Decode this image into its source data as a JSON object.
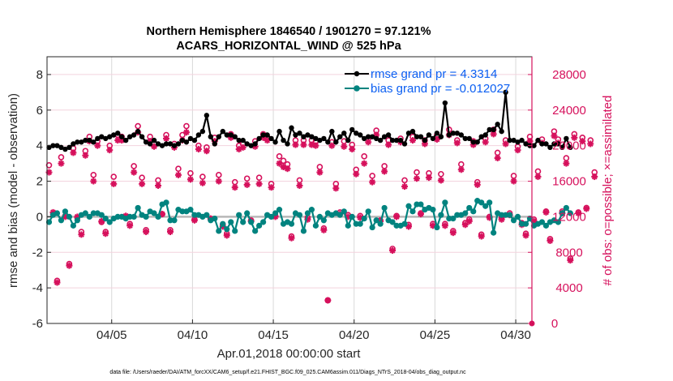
{
  "chart_data": {
    "type": "line",
    "title": "Northern Hemisphere 1846540 / 1901270 = 97.121%",
    "subtitle": "ACARS_HORIZONTAL_WIND @ 525 hPa",
    "xlabel": "Apr.01,2018 00:00:00 start",
    "ylabel": "rmse and bias (model - observation)",
    "y2label": "# of obs: o=possible; ×=assimilated",
    "footer": "data file: /Users/raeder/DAI/ATM_forcXX/CAM6_setup/f.e21.FHIST_BGC.f09_025.CAM6assim.011/Diags_NTrS_2018-04/obs_diag_output.nc",
    "x_unit": "days since Apr.01,2018 00:00:00",
    "xlim": [
      0,
      30
    ],
    "ylim": [
      -6,
      9
    ],
    "y2lim": [
      0,
      30000
    ],
    "grid": true,
    "legend_placement": "top-right",
    "xticks": [
      {
        "value": 4,
        "label": "04/05"
      },
      {
        "value": 9,
        "label": "04/10"
      },
      {
        "value": 14,
        "label": "04/15"
      },
      {
        "value": 19,
        "label": "04/20"
      },
      {
        "value": 24,
        "label": "04/25"
      },
      {
        "value": 29,
        "label": "04/30"
      }
    ],
    "yticks": [
      {
        "value": -6,
        "label": "-6"
      },
      {
        "value": -4,
        "label": "-4"
      },
      {
        "value": -2,
        "label": "-2"
      },
      {
        "value": 0,
        "label": "0"
      },
      {
        "value": 2,
        "label": "2"
      },
      {
        "value": 4,
        "label": "4"
      },
      {
        "value": 6,
        "label": "6"
      },
      {
        "value": 8,
        "label": "8"
      }
    ],
    "y2ticks": [
      {
        "value": 0,
        "label": "0"
      },
      {
        "value": 4000,
        "label": "4000"
      },
      {
        "value": 8000,
        "label": "8000"
      },
      {
        "value": 12000,
        "label": "12000"
      },
      {
        "value": 16000,
        "label": "16000"
      },
      {
        "value": 20000,
        "label": "20000"
      },
      {
        "value": 24000,
        "label": "24000"
      },
      {
        "value": 28000,
        "label": "28000"
      }
    ],
    "zero_line": 0,
    "colors": {
      "rmse": "#000000",
      "bias": "#00837f",
      "obs": "#d6115c",
      "legend_text": "#0b5ff2",
      "zero_line": "#b8b8b8",
      "grid_x": "#d9d9d9",
      "grid_y": "#f3d3de",
      "right_axis": "#d6115c"
    },
    "series": [
      {
        "name": "rmse grand pr = 4.3314",
        "axis": "left",
        "x_start": 0.125,
        "x_step": 0.25,
        "values": [
          3.9,
          4.0,
          4.0,
          3.9,
          3.8,
          3.9,
          4.1,
          4.2,
          4.2,
          4.3,
          4.3,
          4.2,
          4.4,
          4.5,
          4.4,
          4.5,
          4.6,
          4.7,
          4.5,
          4.3,
          4.5,
          4.6,
          4.8,
          4.5,
          4.2,
          4.1,
          4.3,
          4.1,
          4.0,
          4.1,
          4.1,
          4.0,
          4.1,
          4.3,
          4.2,
          4.4,
          4.3,
          4.6,
          4.8,
          5.7,
          4.5,
          4.1,
          4.5,
          4.8,
          4.6,
          4.6,
          4.5,
          4.3,
          4.3,
          4.1,
          4.0,
          4.1,
          4.4,
          4.6,
          4.6,
          4.4,
          4.2,
          4.8,
          4.3,
          4.1,
          5.0,
          4.6,
          4.7,
          4.5,
          4.6,
          4.5,
          4.4,
          4.3,
          4.4,
          4.2,
          4.8,
          4.2,
          4.5,
          4.7,
          4.3,
          4.9,
          4.7,
          4.6,
          4.4,
          4.5,
          4.5,
          4.4,
          4.3,
          4.5,
          4.6,
          4.3,
          4.3,
          4.3,
          4.1,
          4.7,
          4.8,
          4.5,
          4.5,
          4.3,
          4.6,
          4.4,
          4.7,
          4.5,
          6.4,
          4.6,
          4.7,
          4.7,
          4.6,
          4.4,
          4.4,
          4.2,
          4.2,
          4.5,
          4.6,
          4.9,
          4.9,
          5.2,
          4.8,
          7.0,
          4.3,
          4.3,
          4.2,
          4.3,
          4.1,
          4.0,
          4.0,
          4.3,
          4.1,
          4.1,
          3.9,
          4.1,
          4.1,
          3.9,
          4.4,
          3.9
        ],
        "marker": "filled-circle"
      },
      {
        "name": "bias grand pr = -0.012027",
        "axis": "left",
        "x_start": 0.125,
        "x_step": 0.25,
        "values": [
          -0.3,
          0.1,
          0.2,
          -0.2,
          0.3,
          0.0,
          -0.5,
          -0.2,
          0.1,
          0.2,
          0.0,
          0.2,
          0.2,
          0.1,
          -0.1,
          -0.3,
          -0.1,
          0.0,
          0.0,
          -0.1,
          0.0,
          0.0,
          0.5,
          0.1,
          0.0,
          0.3,
          0.2,
          0.0,
          0.7,
          0.8,
          -0.2,
          -0.2,
          0.4,
          0.3,
          0.3,
          0.4,
          0.1,
          0.1,
          0.0,
          0.1,
          -0.2,
          -0.1,
          -0.8,
          -0.4,
          -0.7,
          -0.3,
          -0.8,
          0.1,
          -0.3,
          0.2,
          -0.3,
          -0.8,
          -0.5,
          -0.3,
          0.1,
          0.0,
          0.2,
          0.4,
          -0.4,
          -0.3,
          -0.4,
          0.2,
          0.1,
          -0.8,
          0.2,
          0.4,
          -0.5,
          0.0,
          -0.2,
          0.2,
          0.1,
          0.2,
          0.1,
          0.3,
          -0.5,
          0.0,
          -0.4,
          -0.4,
          -0.1,
          0.3,
          -0.6,
          -0.2,
          -0.4,
          0.5,
          -0.2,
          -0.3,
          -0.5,
          -0.5,
          -0.4,
          0.6,
          0.3,
          0.7,
          0.7,
          0.4,
          0.5,
          0.4,
          -0.6,
          0.1,
          0.8,
          -0.1,
          -0.1,
          0.1,
          0.1,
          0.2,
          0.5,
          0.3,
          0.9,
          0.8,
          0.6,
          0.8,
          -0.9,
          0.2,
          0.1,
          0.1,
          0.1,
          -0.2,
          0.0,
          -0.4,
          -0.4,
          -0.1,
          -0.5,
          -0.4,
          -0.3,
          -0.5,
          -0.3,
          -0.2,
          -0.3,
          0.2,
          0.5,
          0.2
        ],
        "marker": "filled-circle"
      },
      {
        "name": "# of obs possible",
        "axis": "right",
        "marker": "open-circle",
        "x_start": 0.125,
        "x_step": 0.25,
        "values": [
          17800,
          12300,
          4800,
          18700,
          12100,
          6700,
          19700,
          11900,
          10300,
          19400,
          21000,
          16700,
          20500,
          11400,
          10300,
          20000,
          16500,
          21200,
          21000,
          12000,
          11200,
          17700,
          22200,
          16400,
          10500,
          21000,
          20300,
          16100,
          12300,
          21200,
          10500,
          20200,
          17400,
          21200,
          22200,
          16900,
          11700,
          20000,
          16500,
          19800,
          11700,
          20900,
          16700,
          11100,
          10100,
          21300,
          15900,
          20000,
          20200,
          16300,
          11600,
          20500,
          16400,
          21300,
          21000,
          15700,
          12100,
          18800,
          18300,
          17900,
          9800,
          20600,
          16100,
          20600,
          11900,
          20600,
          20500,
          17600,
          10700,
          2600,
          20400,
          15700,
          12500,
          20500,
          12200,
          20100,
          17300,
          12100,
          18800,
          20800,
          16600,
          21700,
          11600,
          17700,
          20600,
          8400,
          12100,
          20800,
          16100,
          11100,
          21000,
          17000,
          12400,
          20600,
          16900,
          11200,
          21200,
          16800,
          11200,
          21800,
          10400,
          20600,
          17900,
          11300,
          11700,
          20500,
          15900,
          10000,
          20800,
          12000,
          21800,
          19200,
          11900,
          20600,
          12400,
          16600,
          19900,
          11300,
          10100,
          21000,
          11700,
          17100,
          20700,
          12600,
          9500,
          21600,
          20700,
          12600,
          18600,
          7300,
          21300,
          12500,
          20900,
          13000,
          20600,
          17000
        ],
        "note": "approximate values, read visually"
      },
      {
        "name": "# of obs assimilated",
        "axis": "right",
        "marker": "asterisk",
        "x_start": 0.125,
        "x_step": 0.25,
        "values": [
          17000,
          12500,
          4600,
          18000,
          12000,
          6500,
          19200,
          12000,
          10000,
          18900,
          20500,
          16000,
          20000,
          11500,
          10100,
          19500,
          15700,
          20600,
          20600,
          12100,
          11000,
          17000,
          21500,
          15700,
          10300,
          20500,
          19900,
          15500,
          12300,
          20800,
          10300,
          19800,
          16700,
          20600,
          21500,
          16200,
          11600,
          19600,
          15800,
          19400,
          11800,
          20500,
          16000,
          10900,
          9900,
          20900,
          15300,
          19600,
          19800,
          15600,
          11500,
          19900,
          15700,
          20900,
          20600,
          15300,
          12000,
          18000,
          17600,
          17400,
          9600,
          20100,
          15500,
          20100,
          11700,
          20100,
          20000,
          17000,
          10500,
          2600,
          20000,
          15200,
          12300,
          19900,
          12000,
          19600,
          16800,
          11900,
          18000,
          20400,
          15900,
          21200,
          11500,
          17100,
          20100,
          8200,
          12000,
          20400,
          15400,
          10900,
          20600,
          16300,
          12300,
          20200,
          16400,
          11000,
          20700,
          16100,
          11000,
          21200,
          10200,
          20300,
          17300,
          11100,
          11500,
          20100,
          15600,
          9800,
          20400,
          11900,
          21300,
          18600,
          11700,
          20200,
          12200,
          16000,
          19500,
          11100,
          9900,
          20500,
          11500,
          16500,
          20300,
          12500,
          9300,
          21100,
          20300,
          12400,
          18000,
          7100,
          20900,
          12400,
          20500,
          12900,
          20200,
          16500
        ],
        "note": "approximate values, read visually"
      }
    ],
    "legend": [
      {
        "label": "rmse grand pr = 4.3314",
        "series": "rmse"
      },
      {
        "label": "bias grand pr = -0.012027",
        "series": "bias"
      }
    ]
  }
}
